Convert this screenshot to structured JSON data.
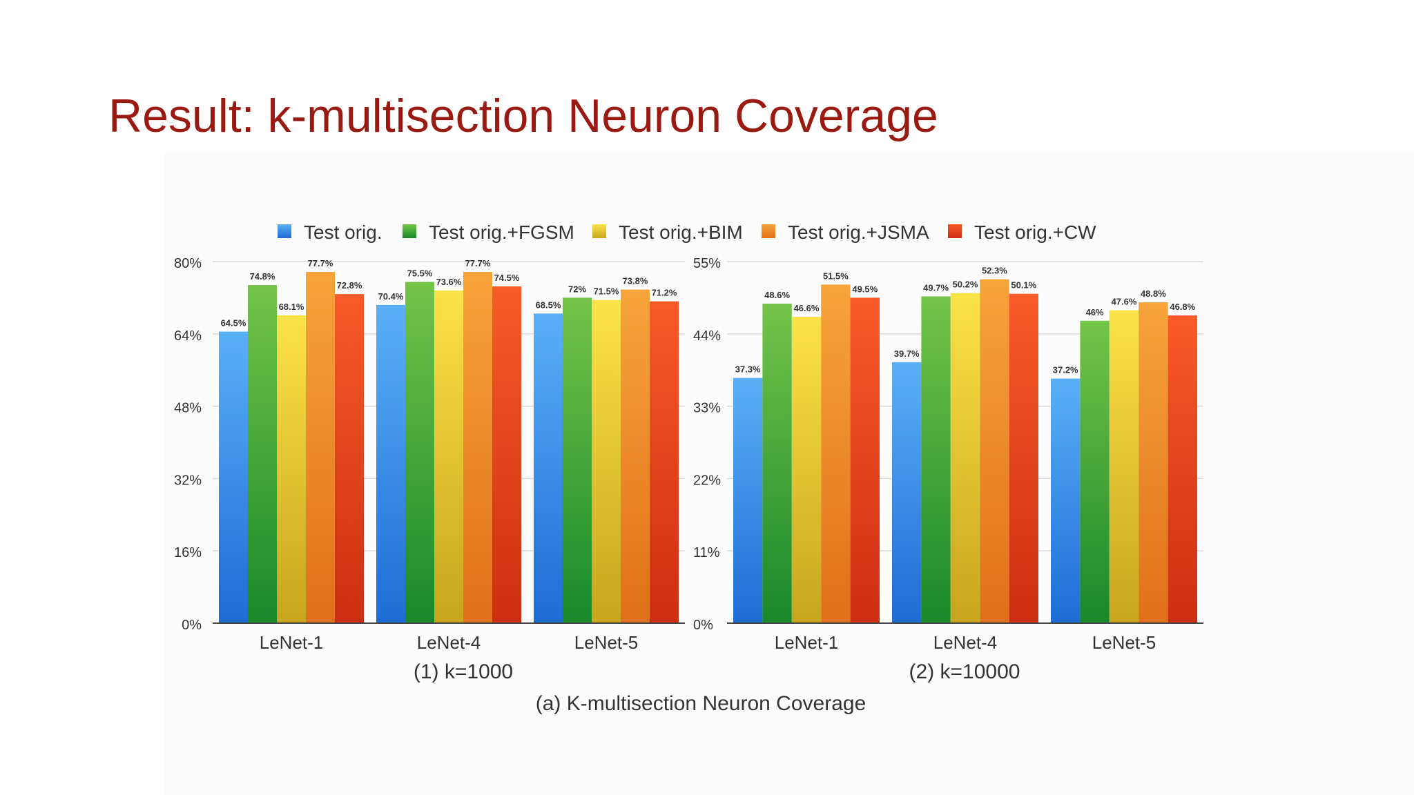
{
  "slide": {
    "title": "Result: k-multisection Neuron Coverage"
  },
  "figure": {
    "caption": "(a) K-multisection Neuron Coverage"
  },
  "chart_data": [
    {
      "type": "bar",
      "title": "",
      "subtitle": "(1) k=1000",
      "xlabel": "",
      "ylabel": "",
      "ylim": [
        0,
        80
      ],
      "y_unit": "%",
      "y_ticks": [
        "0%",
        "16%",
        "32%",
        "48%",
        "64%",
        "80%"
      ],
      "categories": [
        "LeNet-1",
        "LeNet-4",
        "LeNet-5"
      ],
      "series": [
        {
          "name": "Test orig.",
          "values": [
            64.5,
            70.4,
            68.5
          ],
          "labels": [
            "64.5%",
            "70.4%",
            "68.5%"
          ]
        },
        {
          "name": "Test orig.+FGSM",
          "values": [
            74.8,
            75.5,
            72
          ],
          "labels": [
            "74.8%",
            "75.5%",
            "72%"
          ]
        },
        {
          "name": "Test orig.+BIM",
          "values": [
            68.1,
            73.6,
            71.5
          ],
          "labels": [
            "68.1%",
            "73.6%",
            "71.5%"
          ]
        },
        {
          "name": "Test orig.+JSMA",
          "values": [
            77.7,
            77.7,
            73.8
          ],
          "labels": [
            "77.7%",
            "77.7%",
            "73.8%"
          ]
        },
        {
          "name": "Test orig.+CW",
          "values": [
            72.8,
            74.5,
            71.2
          ],
          "labels": [
            "72.8%",
            "74.5%",
            "71.2%"
          ]
        }
      ],
      "grid": true,
      "legend": "top"
    },
    {
      "type": "bar",
      "title": "",
      "subtitle": "(2) k=10000",
      "xlabel": "",
      "ylabel": "",
      "ylim": [
        0,
        55
      ],
      "y_unit": "%",
      "y_ticks": [
        "0%",
        "11%",
        "22%",
        "33%",
        "44%",
        "55%"
      ],
      "categories": [
        "LeNet-1",
        "LeNet-4",
        "LeNet-5"
      ],
      "series": [
        {
          "name": "Test orig.",
          "values": [
            37.3,
            39.7,
            37.2
          ],
          "labels": [
            "37.3%",
            "39.7%",
            "37.2%"
          ]
        },
        {
          "name": "Test orig.+FGSM",
          "values": [
            48.6,
            49.7,
            46
          ],
          "labels": [
            "48.6%",
            "49.7%",
            "46%"
          ]
        },
        {
          "name": "Test orig.+BIM",
          "values": [
            46.6,
            50.2,
            47.6
          ],
          "labels": [
            "46.6%",
            "50.2%",
            "47.6%"
          ]
        },
        {
          "name": "Test orig.+JSMA",
          "values": [
            51.5,
            52.3,
            48.8
          ],
          "labels": [
            "51.5%",
            "52.3%",
            "48.8%"
          ]
        },
        {
          "name": "Test orig.+CW",
          "values": [
            49.5,
            50.1,
            46.8
          ],
          "labels": [
            "49.5%",
            "50.1%",
            "46.8%"
          ]
        }
      ],
      "grid": true,
      "legend": "top"
    }
  ],
  "legend": {
    "items": [
      {
        "label": "Test orig.",
        "color": "#2a84e8"
      },
      {
        "label": "Test orig.+FGSM",
        "color": "#3aa63a"
      },
      {
        "label": "Test orig.+BIM",
        "color": "#f2cc1e"
      },
      {
        "label": "Test orig.+JSMA",
        "color": "#f08f1c"
      },
      {
        "label": "Test orig.+CW",
        "color": "#ee4520"
      }
    ]
  },
  "colors": {
    "title": "#9a1a12",
    "series_top": [
      "#5ab0f7",
      "#74c449",
      "#fbe34a",
      "#f7a43a",
      "#f85a28"
    ],
    "series_bottom": [
      "#1d6cd4",
      "#18882a",
      "#c8a51e",
      "#e0701a",
      "#cc2e12"
    ],
    "axis_text": "#333333",
    "gridline": "#d9d9d9",
    "axis_line": "#444444"
  }
}
